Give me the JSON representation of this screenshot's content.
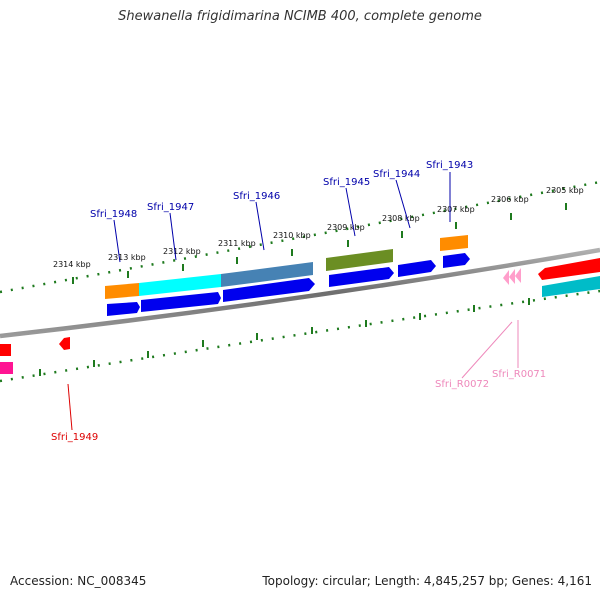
{
  "title": "Shewanella frigidimarina NCIMB 400, complete genome",
  "footer": {
    "accession": "Accession: NC_008345",
    "summary": "Topology: circular; Length: 4,845,257 bp; Genes: 4,161"
  },
  "ticks": [
    "2305 kbp",
    "2306 kbp",
    "2307 kbp",
    "2308 kbp",
    "2309 kbp",
    "2310 kbp",
    "2311 kbp",
    "2312 kbp",
    "2313 kbp",
    "2314 kbp"
  ],
  "gene_labels": {
    "sfri_1943": "Sfri_1943",
    "sfri_1944": "Sfri_1944",
    "sfri_1945": "Sfri_1945",
    "sfri_1946": "Sfri_1946",
    "sfri_1947": "Sfri_1947",
    "sfri_1948": "Sfri_1948",
    "sfri_1949": "Sfri_1949",
    "sfri_r0071": "Sfri_R0071",
    "sfri_r0072": "Sfri_R0072"
  },
  "colors": {
    "backbone": "#808080",
    "tick": "#1e7a1e",
    "cds": "#0000ee",
    "orange": "#ff8c00",
    "cyan": "#00ffff",
    "steelblue": "#4682b4",
    "olive": "#6b8e23",
    "red": "#ff0000",
    "pink": "#ff1493",
    "teal": "#00bcc8",
    "rna": "#ff9ecb",
    "label_blue": "#0000aa",
    "label_red": "#dd0000",
    "label_pink": "#ee88bb"
  }
}
